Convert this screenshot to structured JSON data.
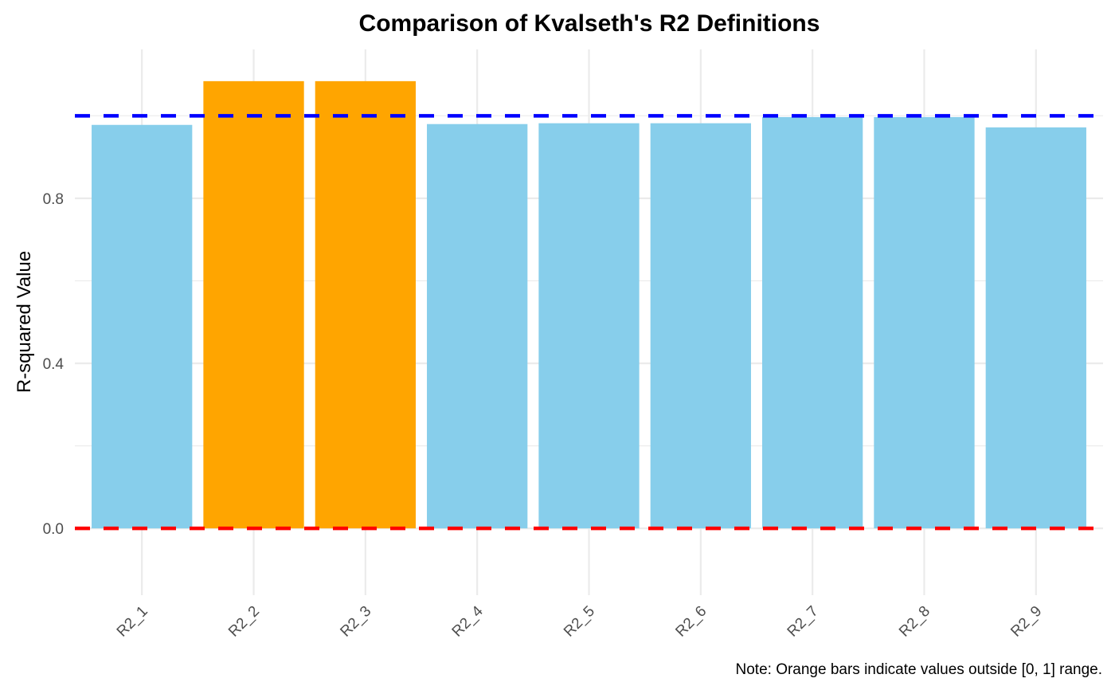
{
  "chart_data": {
    "type": "bar",
    "title": "Comparison of Kvalseth's R2 Definitions",
    "xlabel": "",
    "ylabel": "R-squared Value",
    "caption": "Note: Orange bars indicate values outside [0, 1] range.",
    "categories": [
      "R2_1",
      "R2_2",
      "R2_3",
      "R2_4",
      "R2_5",
      "R2_6",
      "R2_7",
      "R2_8",
      "R2_9"
    ],
    "values": [
      0.978,
      1.084,
      1.084,
      0.98,
      0.982,
      0.982,
      0.997,
      0.997,
      0.972
    ],
    "out_of_range": [
      false,
      true,
      true,
      false,
      false,
      false,
      false,
      false,
      false
    ],
    "ylim": [
      -0.162,
      1.161
    ],
    "y_ticks": [
      0.0,
      0.4,
      0.8
    ],
    "y_tick_labels": [
      "0.0",
      "0.4",
      "0.8"
    ],
    "y_minor_grid": [
      0.2,
      0.6,
      1.0
    ],
    "grid": true,
    "legend": "none",
    "reference_lines": [
      {
        "name": "upper-bound",
        "y": 1.0,
        "style": "dashed",
        "color": "#0000FF"
      },
      {
        "name": "lower-bound",
        "y": 0.0,
        "style": "dashed",
        "color": "#FF0000"
      }
    ],
    "colors": {
      "in_range": "#87CEEB",
      "out_of_range": "#FFA500",
      "grid": "#EBEBEB"
    }
  }
}
